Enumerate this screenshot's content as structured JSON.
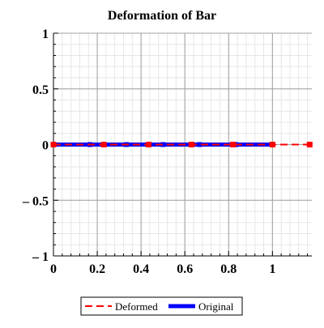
{
  "chart_data": {
    "type": "line",
    "title": "Deformation of Bar",
    "xlabel": "",
    "ylabel": "",
    "xlim": [
      0,
      1.18
    ],
    "ylim": [
      -1,
      1
    ],
    "x_ticks": [
      0,
      0.2,
      0.4,
      0.6,
      0.8,
      1
    ],
    "x_tick_labels": [
      "0",
      "0.2",
      "0.4",
      "0.6",
      "0.8",
      "1"
    ],
    "y_ticks": [
      1,
      0.5,
      0,
      -0.5,
      -1
    ],
    "y_tick_labels": [
      "1",
      "0.5",
      "0",
      "– 0.5",
      "– 1"
    ],
    "grid": true,
    "legend_position": "bottom",
    "series": [
      {
        "name": "Deformed",
        "color": "#ff0000",
        "style": "dashed",
        "marker": "square",
        "x": [
          0,
          0.23,
          0.435,
          0.63,
          0.82,
          1.0,
          1.17
        ],
        "y": [
          0,
          0,
          0,
          0,
          0,
          0,
          0
        ]
      },
      {
        "name": "Original",
        "color": "#0000ff",
        "style": "solid",
        "marker": "square",
        "x": [
          0,
          0.1667,
          0.3333,
          0.5,
          0.6667,
          0.8333,
          1.0
        ],
        "y": [
          0,
          0,
          0,
          0,
          0,
          0,
          0
        ]
      }
    ]
  }
}
